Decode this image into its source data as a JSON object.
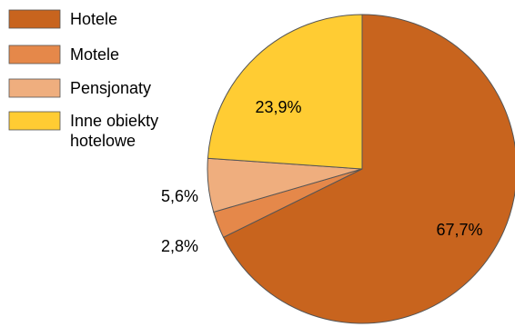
{
  "chart_data": {
    "type": "pie",
    "title": "",
    "legend_position": "top-left",
    "series": [
      {
        "name": "",
        "slices": [
          {
            "label": "Hotele",
            "value": 67.7,
            "display": "67,7%",
            "color": "#C8641E"
          },
          {
            "label": "Motele",
            "value": 2.8,
            "display": "2,8%",
            "color": "#E5884A"
          },
          {
            "label": "Pensjonaty",
            "value": 5.6,
            "display": "5,6%",
            "color": "#EFAE7E"
          },
          {
            "label": "Inne obiekty hotelowe",
            "legend_lines": [
              "Inne obiekty",
              "hotelowe"
            ],
            "value": 23.9,
            "display": "23,9%",
            "color": "#FFCC33"
          }
        ]
      }
    ],
    "start_angle_deg": 0,
    "direction": "clockwise",
    "slice_stroke_color": "#555555"
  }
}
